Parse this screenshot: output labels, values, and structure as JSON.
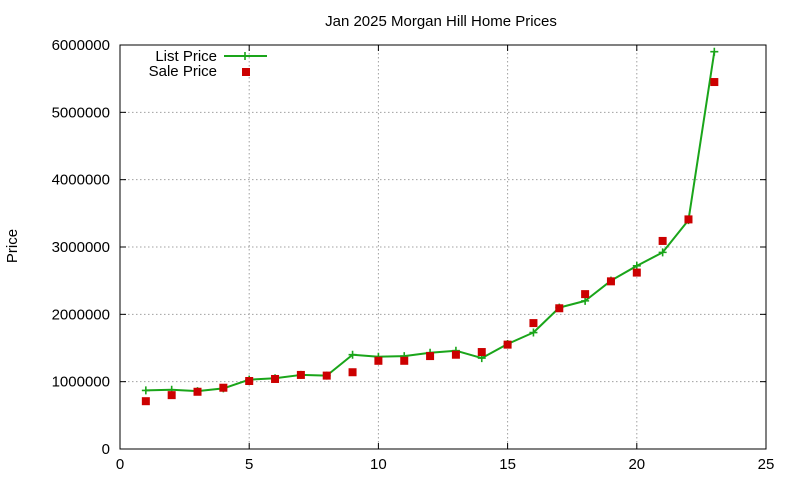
{
  "chart_data": {
    "type": "line",
    "title": "Jan 2025 Morgan Hill Home Prices",
    "xlabel": "",
    "ylabel": "Price",
    "xlim": [
      0,
      25
    ],
    "ylim": [
      0,
      6000000
    ],
    "xticks": [
      0,
      5,
      10,
      15,
      20,
      25
    ],
    "yticks": [
      0,
      1000000,
      2000000,
      3000000,
      4000000,
      5000000,
      6000000
    ],
    "grid": true,
    "legend_position": "top-left",
    "series": [
      {
        "name": "List Price",
        "style": "line-plus",
        "color": "#1aa51a",
        "x": [
          1,
          2,
          3,
          4,
          5,
          6,
          7,
          8,
          9,
          10,
          11,
          12,
          13,
          14,
          15,
          16,
          17,
          18,
          19,
          20,
          21,
          22,
          23
        ],
        "y": [
          870000,
          880000,
          860000,
          900000,
          1030000,
          1050000,
          1100000,
          1090000,
          1400000,
          1370000,
          1380000,
          1430000,
          1460000,
          1350000,
          1560000,
          1730000,
          2100000,
          2200000,
          2500000,
          2720000,
          2920000,
          3400000,
          5900000
        ]
      },
      {
        "name": "Sale Price",
        "style": "square",
        "color": "#cc0000",
        "x": [
          1,
          2,
          3,
          4,
          5,
          6,
          7,
          8,
          9,
          10,
          11,
          12,
          13,
          14,
          15,
          16,
          17,
          18,
          19,
          20,
          21,
          22,
          23
        ],
        "y": [
          710000,
          800000,
          850000,
          910000,
          1010000,
          1040000,
          1100000,
          1090000,
          1140000,
          1310000,
          1310000,
          1380000,
          1400000,
          1440000,
          1550000,
          1870000,
          2090000,
          2300000,
          2490000,
          2620000,
          3090000,
          3410000,
          5450000
        ]
      }
    ]
  }
}
